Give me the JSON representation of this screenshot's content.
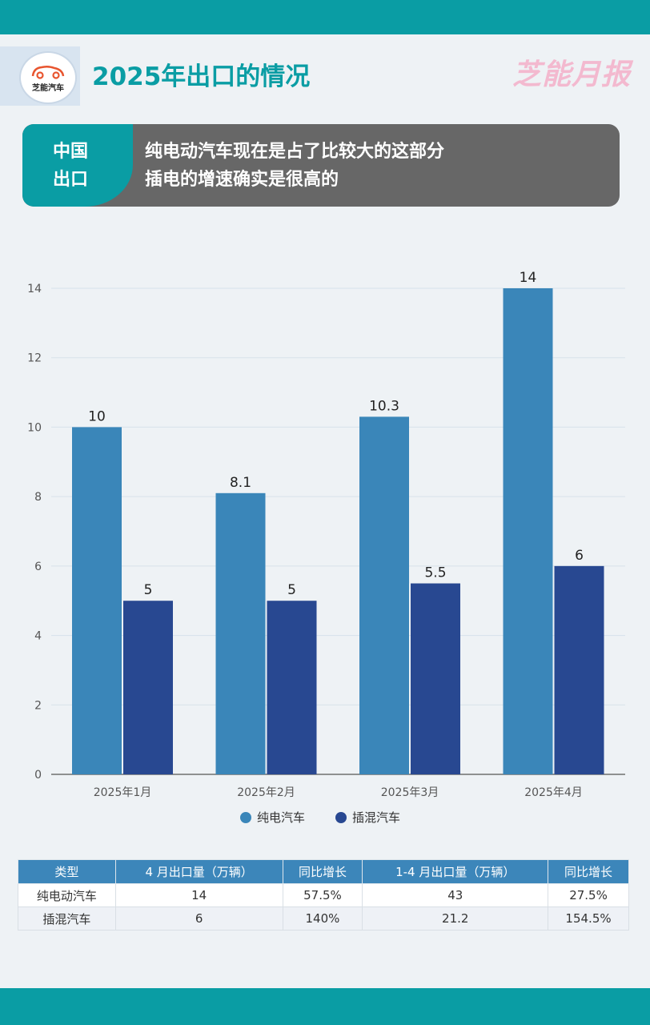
{
  "header": {
    "logo_text": "芝能汽车",
    "title": "2025年出口的情况",
    "brand": "芝能月报"
  },
  "banner": {
    "tag_line1": "中国",
    "tag_line2": "出口",
    "text_line1": "纯电动汽车现在是占了比较大的这部分",
    "text_line2": "插电的增速确实是很高的"
  },
  "colors": {
    "accent": "#0a9da4",
    "bev": "#3a86b9",
    "phev": "#284891",
    "brand": "#f3b9cf"
  },
  "chart_data": {
    "type": "bar",
    "categories": [
      "2025年1月",
      "2025年2月",
      "2025年3月",
      "2025年4月"
    ],
    "series": [
      {
        "name": "纯电汽车",
        "values": [
          10,
          8.1,
          10.3,
          14
        ],
        "labels": [
          "10",
          "8.1",
          "10.3",
          "14"
        ]
      },
      {
        "name": "插混汽车",
        "values": [
          5,
          5,
          5.5,
          6
        ],
        "labels": [
          "5",
          "5",
          "5.5",
          "6"
        ]
      }
    ],
    "yticks": [
      "0",
      "2",
      "4",
      "6",
      "8",
      "10",
      "12",
      "14"
    ],
    "ylim": [
      0,
      14
    ],
    "grid": true,
    "legend": "bottom-center"
  },
  "table": {
    "headers": [
      "类型",
      "4 月出口量（万辆）",
      "同比增长",
      "1-4 月出口量（万辆）",
      "同比增长"
    ],
    "rows": [
      [
        "纯电动汽车",
        "14",
        "57.5%",
        "43",
        "27.5%"
      ],
      [
        "插混汽车",
        "6",
        "140%",
        "21.2",
        "154.5%"
      ]
    ]
  }
}
